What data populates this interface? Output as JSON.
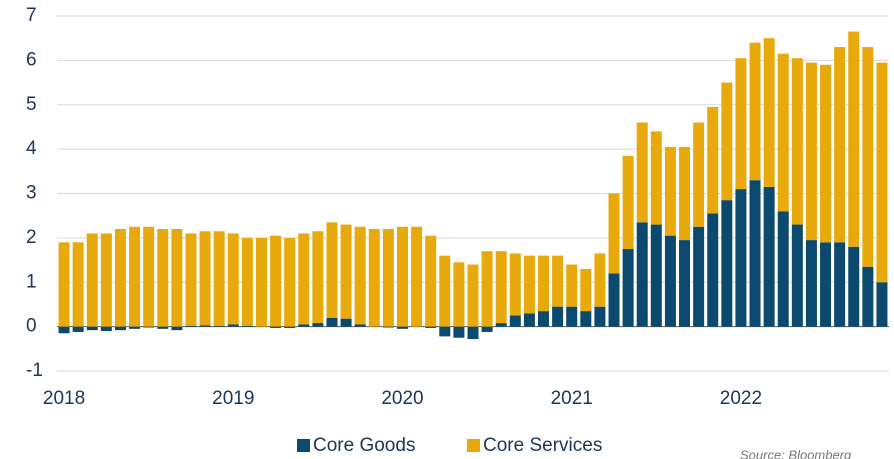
{
  "chart_data": {
    "type": "bar",
    "stacked": true,
    "categories": [
      "2018",
      null,
      null,
      null,
      null,
      null,
      null,
      null,
      null,
      null,
      null,
      null,
      "2019",
      null,
      null,
      null,
      null,
      null,
      null,
      null,
      null,
      null,
      null,
      null,
      "2020",
      null,
      null,
      null,
      null,
      null,
      null,
      null,
      null,
      null,
      null,
      null,
      "2021",
      null,
      null,
      null,
      null,
      null,
      null,
      null,
      null,
      null,
      null,
      null,
      "2022",
      null,
      null,
      null,
      null,
      null,
      null,
      null,
      null,
      null,
      null
    ],
    "series": [
      {
        "name": "Core Goods",
        "color": "#0b4a6e",
        "values": [
          -0.15,
          -0.12,
          -0.08,
          -0.1,
          -0.08,
          -0.05,
          -0.02,
          -0.05,
          -0.08,
          0.02,
          0.03,
          0.02,
          0.05,
          0.02,
          0.0,
          -0.03,
          -0.03,
          0.05,
          0.08,
          0.2,
          0.18,
          0.05,
          0.0,
          -0.02,
          -0.05,
          0.0,
          -0.03,
          -0.22,
          -0.25,
          -0.28,
          -0.12,
          0.08,
          0.25,
          0.3,
          0.35,
          0.45,
          0.45,
          0.35,
          0.45,
          1.2,
          1.75,
          2.35,
          2.3,
          2.05,
          1.95,
          2.25,
          2.55,
          2.85,
          3.1,
          3.3,
          3.15,
          2.6,
          2.3,
          1.95,
          1.9,
          1.9,
          1.8,
          1.35,
          1.0
        ]
      },
      {
        "name": "Core Services",
        "color": "#e8a90c",
        "values": [
          1.9,
          1.9,
          2.1,
          2.1,
          2.2,
          2.25,
          2.25,
          2.2,
          2.2,
          2.08,
          2.12,
          2.13,
          2.05,
          1.98,
          2.0,
          2.05,
          2.0,
          2.05,
          2.07,
          2.15,
          2.12,
          2.2,
          2.2,
          2.2,
          2.25,
          2.25,
          2.05,
          1.6,
          1.45,
          1.4,
          1.7,
          1.62,
          1.4,
          1.3,
          1.25,
          1.15,
          0.95,
          0.95,
          1.2,
          1.8,
          2.1,
          2.25,
          2.1,
          2.0,
          2.1,
          2.35,
          2.4,
          2.65,
          2.95,
          3.1,
          3.35,
          3.55,
          3.75,
          4.0,
          4.0,
          4.4,
          4.85,
          4.95,
          4.95
        ]
      }
    ],
    "ylim": [
      -1,
      7
    ],
    "yticks": [
      -1,
      0,
      1,
      2,
      3,
      4,
      5,
      6,
      7
    ],
    "grid": true,
    "legend": "bottom",
    "source": "Source: Bloomberg"
  }
}
